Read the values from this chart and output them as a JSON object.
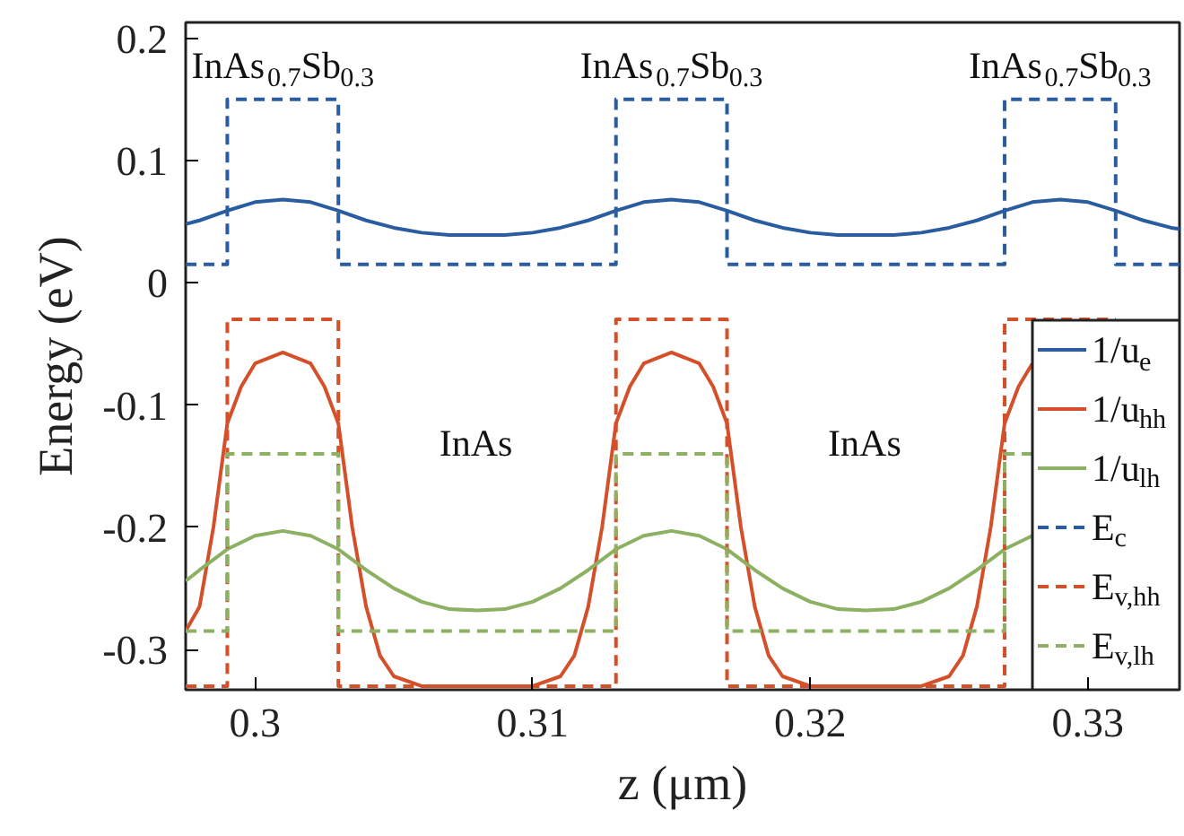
{
  "chart_data": {
    "type": "line",
    "xlabel": "z (μm)",
    "ylabel": "Energy (eV)",
    "xlim": [
      0.2975,
      0.3333
    ],
    "ylim": [
      -0.333,
      0.213
    ],
    "xticks": [
      0.3,
      0.31,
      0.32,
      0.33
    ],
    "yticks": [
      -0.3,
      -0.2,
      -0.1,
      0,
      0.1,
      0.2
    ],
    "grid": false,
    "legend": "bottom right",
    "line_style": "solid",
    "series": [
      {
        "name": "1/u$_{e}$",
        "color": "#2a5d9f",
        "x": [
          0.2975,
          0.298,
          0.299,
          0.3,
          0.301,
          0.302,
          0.303,
          0.304,
          0.305,
          0.306,
          0.307,
          0.308,
          0.309,
          0.31,
          0.311,
          0.312,
          0.313,
          0.314,
          0.315,
          0.316,
          0.317,
          0.318,
          0.319,
          0.32,
          0.321,
          0.322,
          0.323,
          0.324,
          0.325,
          0.326,
          0.327,
          0.328,
          0.329,
          0.33,
          0.331,
          0.332,
          0.333,
          0.3333
        ],
        "values": [
          0.048,
          0.051,
          0.059,
          0.066,
          0.068,
          0.066,
          0.059,
          0.051,
          0.045,
          0.041,
          0.039,
          0.039,
          0.039,
          0.041,
          0.045,
          0.051,
          0.059,
          0.066,
          0.068,
          0.066,
          0.059,
          0.051,
          0.045,
          0.041,
          0.039,
          0.039,
          0.039,
          0.041,
          0.045,
          0.051,
          0.059,
          0.066,
          0.068,
          0.066,
          0.059,
          0.051,
          0.045,
          0.044
        ]
      },
      {
        "name": "1/u$_{hh}$",
        "color": "#d4502a",
        "x": [
          0.2975,
          0.298,
          0.2985,
          0.299,
          0.2995,
          0.3,
          0.301,
          0.302,
          0.3025,
          0.303,
          0.3035,
          0.304,
          0.3045,
          0.305,
          0.306,
          0.308,
          0.31,
          0.311,
          0.3115,
          0.312,
          0.3125,
          0.313,
          0.3135,
          0.314,
          0.315,
          0.316,
          0.3165,
          0.317,
          0.3175,
          0.318,
          0.3185,
          0.319,
          0.32,
          0.322,
          0.324,
          0.325,
          0.3255,
          0.326,
          0.3265,
          0.327,
          0.3275,
          0.328
        ],
        "values": [
          -0.285,
          -0.265,
          -0.2,
          -0.115,
          -0.085,
          -0.066,
          -0.057,
          -0.066,
          -0.085,
          -0.115,
          -0.2,
          -0.265,
          -0.305,
          -0.322,
          -0.33,
          -0.33,
          -0.33,
          -0.322,
          -0.305,
          -0.265,
          -0.2,
          -0.115,
          -0.085,
          -0.066,
          -0.057,
          -0.066,
          -0.085,
          -0.115,
          -0.2,
          -0.265,
          -0.305,
          -0.322,
          -0.33,
          -0.33,
          -0.33,
          -0.322,
          -0.305,
          -0.265,
          -0.2,
          -0.115,
          -0.085,
          -0.066
        ]
      },
      {
        "name": "1/u$_{lh}$",
        "color": "#8db162",
        "x": [
          0.2975,
          0.298,
          0.299,
          0.3,
          0.301,
          0.302,
          0.303,
          0.304,
          0.305,
          0.306,
          0.307,
          0.308,
          0.309,
          0.31,
          0.311,
          0.312,
          0.313,
          0.314,
          0.315,
          0.316,
          0.317,
          0.318,
          0.319,
          0.32,
          0.321,
          0.322,
          0.323,
          0.324,
          0.325,
          0.326,
          0.327,
          0.328
        ],
        "values": [
          -0.244,
          -0.235,
          -0.218,
          -0.207,
          -0.203,
          -0.207,
          -0.218,
          -0.235,
          -0.25,
          -0.261,
          -0.267,
          -0.268,
          -0.267,
          -0.261,
          -0.25,
          -0.235,
          -0.218,
          -0.207,
          -0.203,
          -0.207,
          -0.218,
          -0.235,
          -0.25,
          -0.261,
          -0.267,
          -0.268,
          -0.267,
          -0.261,
          -0.25,
          -0.235,
          -0.218,
          -0.207
        ]
      },
      {
        "name": "E$_{c}$",
        "color": "#2a5d9f",
        "line_style": "dashed",
        "x": [
          0.2975,
          0.299,
          0.299,
          0.303,
          0.303,
          0.313,
          0.313,
          0.317,
          0.317,
          0.327,
          0.327,
          0.331,
          0.331,
          0.3333
        ],
        "values": [
          0.015,
          0.015,
          0.15,
          0.15,
          0.015,
          0.015,
          0.15,
          0.15,
          0.015,
          0.015,
          0.15,
          0.15,
          0.015,
          0.015
        ]
      },
      {
        "name": "E$_{v,hh}$",
        "color": "#d4502a",
        "line_style": "dashed",
        "x": [
          0.2975,
          0.299,
          0.299,
          0.303,
          0.303,
          0.313,
          0.313,
          0.317,
          0.317,
          0.327,
          0.327,
          0.331
        ],
        "values": [
          -0.33,
          -0.33,
          -0.03,
          -0.03,
          -0.33,
          -0.33,
          -0.03,
          -0.03,
          -0.33,
          -0.33,
          -0.03,
          -0.03
        ]
      },
      {
        "name": "E$_{v,lh}$",
        "color": "#8db162",
        "line_style": "dashed",
        "x": [
          0.2975,
          0.299,
          0.299,
          0.303,
          0.303,
          0.313,
          0.313,
          0.317,
          0.317,
          0.327,
          0.327,
          0.328
        ],
        "values": [
          -0.285,
          -0.285,
          -0.14,
          -0.14,
          -0.285,
          -0.285,
          -0.14,
          -0.14,
          -0.285,
          -0.285,
          -0.14,
          -0.14
        ]
      }
    ],
    "annotations": [
      "InAs$_{0.7}$Sb$_{0.3}$",
      "InAs$_{0.7}$Sb$_{0.3}$",
      "InAs$_{0.7}$Sb$_{0.3}$",
      "InAs",
      "InAs"
    ]
  }
}
